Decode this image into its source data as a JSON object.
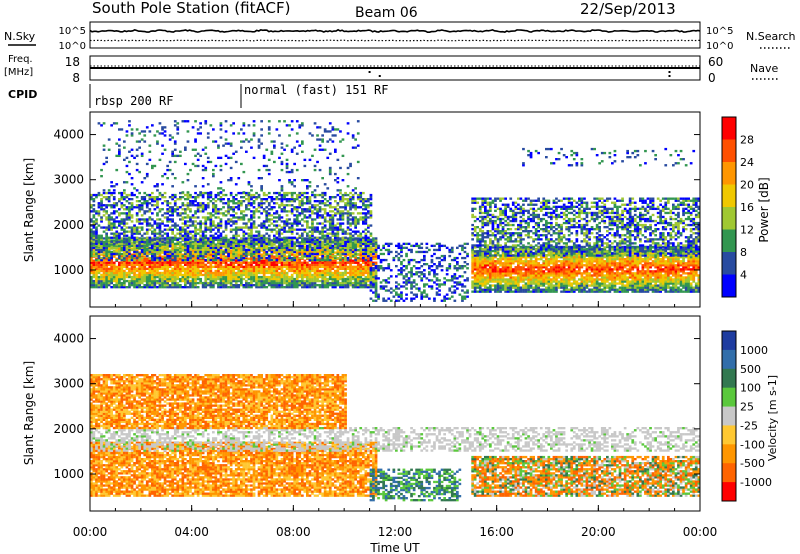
{
  "header": {
    "station": "South Pole Station (fitACF)",
    "beam": "Beam 06",
    "date": "22/Sep/2013"
  },
  "status_panels": {
    "nsky_label": "N.Sky",
    "nsearch_label": "N.Search",
    "freq_label_line1": "Freq.",
    "freq_label_line2": "[MHz]",
    "nave_label": "Nave",
    "cpid_label": "CPID",
    "noise_left_ticks": [
      "10^5",
      "10^0"
    ],
    "noise_right_ticks": [
      "10^5",
      "10^0"
    ],
    "freq_left_ticks": [
      "18",
      "8"
    ],
    "freq_right_ticks": [
      "60",
      "0"
    ],
    "cpid_segments": [
      {
        "label": "rbsp 200 RF",
        "start_hour": 0
      },
      {
        "label": "normal (fast) 151 RF",
        "start_hour": 6
      }
    ]
  },
  "chart_data": [
    {
      "type": "heatmap",
      "name": "power",
      "ylabel": "Slant Range [km]",
      "x_range_hours": [
        0,
        24
      ],
      "y_range_km": [
        180,
        4500
      ],
      "y_ticks": [
        1000,
        2000,
        3000,
        4000
      ],
      "colorbar": {
        "label": "Power [dB]",
        "ticks": [
          "28",
          "24",
          "20",
          "16",
          "12",
          "8",
          "4"
        ],
        "colors": [
          "#ff0000",
          "#ff5000",
          "#ff9600",
          "#f0c800",
          "#a0c832",
          "#329650",
          "#284ba0",
          "#0000ff"
        ]
      },
      "echo_regions": [
        {
          "t0": 0.0,
          "t1": 11.2,
          "r0": 600,
          "r1": 1700,
          "level": "high"
        },
        {
          "t0": 0.0,
          "t1": 11.0,
          "r0": 1200,
          "r1": 2700,
          "level": "low"
        },
        {
          "t0": 0.3,
          "t1": 10.5,
          "r0": 2700,
          "r1": 4300,
          "level": "sparse"
        },
        {
          "t0": 11.0,
          "t1": 14.8,
          "r0": 300,
          "r1": 1600,
          "level": "weak"
        },
        {
          "t0": 15.0,
          "t1": 24.0,
          "r0": 500,
          "r1": 1500,
          "level": "high"
        },
        {
          "t0": 15.0,
          "t1": 24.0,
          "r0": 1300,
          "r1": 2600,
          "level": "low"
        },
        {
          "t0": 17.0,
          "t1": 23.8,
          "r0": 3300,
          "r1": 3700,
          "level": "sparse"
        }
      ]
    },
    {
      "type": "heatmap",
      "name": "velocity",
      "ylabel": "Slant Range [km]",
      "xlabel": "Time UT",
      "x_ticks": [
        "00:00",
        "04:00",
        "08:00",
        "12:00",
        "16:00",
        "20:00",
        "00:00"
      ],
      "x_range_hours": [
        0,
        24
      ],
      "y_range_km": [
        180,
        4500
      ],
      "y_ticks": [
        1000,
        2000,
        3000,
        4000
      ],
      "colorbar": {
        "label": "Velocity [m s-1]",
        "ticks": [
          "1000",
          "500",
          "100",
          "25",
          "-25",
          "-100",
          "-500",
          "-1000"
        ],
        "colors": [
          "#1e3ca0",
          "#326eaa",
          "#327850",
          "#5ac83c",
          "#c8c8c8",
          "#ffc832",
          "#ff9600",
          "#ff6400",
          "#ff0000"
        ]
      },
      "echo_regions": [
        {
          "t0": 0.0,
          "t1": 11.2,
          "r0": 500,
          "r1": 1700,
          "level": "negative"
        },
        {
          "t0": 0.0,
          "t1": 24.0,
          "r0": 1500,
          "r1": 2000,
          "level": "ground"
        },
        {
          "t0": 0.0,
          "t1": 10.0,
          "r0": 2000,
          "r1": 3200,
          "level": "negative"
        },
        {
          "t0": 11.0,
          "t1": 14.5,
          "r0": 400,
          "r1": 1100,
          "level": "positive"
        },
        {
          "t0": 15.0,
          "t1": 24.0,
          "r0": 500,
          "r1": 1400,
          "level": "mixed"
        }
      ]
    }
  ]
}
